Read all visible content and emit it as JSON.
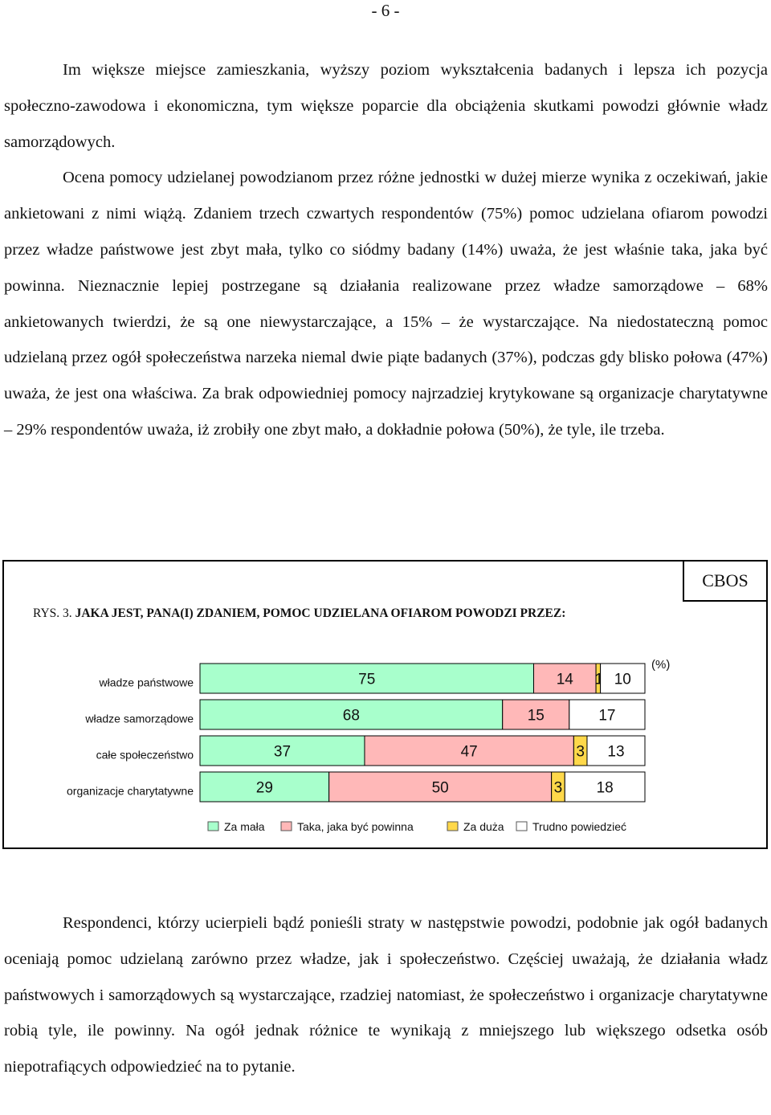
{
  "page_number": "- 6 -",
  "paragraph_1": "Im większe miejsce zamieszkania, wyższy poziom wykształcenia badanych i lepsza ich pozycja społeczno-zawodowa i ekonomiczna, tym większe poparcie dla obciążenia skutkami powodzi głównie władz samorządowych.",
  "paragraph_2": "Ocena pomocy udzielanej powodzianom przez różne jednostki w dużej mierze wynika z oczekiwań, jakie ankietowani z nimi wiążą. Zdaniem trzech czwartych respondentów (75%) pomoc udzielana ofiarom powodzi przez władze państwowe jest zbyt mała, tylko co siódmy badany (14%) uważa, że jest właśnie taka, jaka być powinna. Nieznacznie lepiej postrzegane są działania realizowane przez władze samorządowe – 68% ankietowanych twierdzi, że są one niewystarczające, a 15% – że wystarczające. Na niedostateczną pomoc udzielaną przez ogół społeczeństwa narzeka niemal dwie piąte badanych (37%), podczas gdy blisko połowa (47%) uważa, że jest ona właściwa. Za brak odpowiedniej pomocy najrzadziej krytykowane są organizacje charytatywne – 29% respondentów uważa, iż zrobiły one zbyt mało, a dokładnie połowa (50%), że tyle, ile trzeba.",
  "paragraph_3": "Respondenci, którzy ucierpieli bądź ponieśli straty w następstwie powodzi, podobnie jak ogół badanych oceniają pomoc udzielaną zarówno przez władze, jak i społeczeństwo. Częściej uważają, że działania władz państwowych i samorządowych są wystarczające, rzadziej natomiast, że społeczeństwo i organizacje charytatywne robią tyle, ile powinny. Na ogół jednak różnice te wynikają z mniejszego lub większego odsetka osób niepotrafiących odpowiedzieć na to pytanie.",
  "figure": {
    "source": "CBOS",
    "number": "RYS. 3.",
    "title": "JAKA JEST, PANA(I) ZDANIEM, POMOC UDZIELANA OFIAROM POWODZI PRZEZ:"
  },
  "chart_data": {
    "type": "bar",
    "orientation": "horizontal",
    "stacked": true,
    "unit_label": "(%)",
    "categories": [
      "władze państwowe",
      "władze samorządowe",
      "całe społeczeństwo",
      "organizacje charytatywne"
    ],
    "series": [
      {
        "name": "Za mała",
        "color": "#a8ffcc",
        "values": [
          75,
          68,
          37,
          29
        ]
      },
      {
        "name": "Taka, jaka być powinna",
        "color": "#ffb8b8",
        "values": [
          14,
          15,
          47,
          50
        ]
      },
      {
        "name": "Za duża",
        "color": "#ffd84a",
        "values": [
          1,
          0,
          3,
          3
        ]
      },
      {
        "name": "Trudno powiedzieć",
        "color": "#ffffff",
        "values": [
          10,
          17,
          13,
          18
        ]
      }
    ],
    "xlim": [
      0,
      100
    ],
    "legend_position": "bottom",
    "grid": false
  }
}
